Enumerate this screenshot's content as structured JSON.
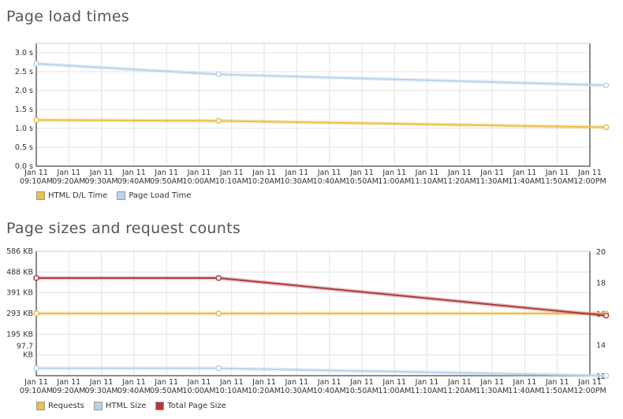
{
  "chart_data": [
    {
      "type": "line",
      "title": "Page load times",
      "categories": [
        "Jan 11 09:10AM",
        "Jan 11 09:20AM",
        "Jan 11 09:30AM",
        "Jan 11 09:40AM",
        "Jan 11 09:50AM",
        "Jan 11 10:00AM",
        "Jan 11 10:10AM",
        "Jan 11 10:20AM",
        "Jan 11 10:30AM",
        "Jan 11 10:40AM",
        "Jan 11 10:50AM",
        "Jan 11 11:00AM",
        "Jan 11 11:10AM",
        "Jan 11 11:20AM",
        "Jan 11 11:30AM",
        "Jan 11 11:40AM",
        "Jan 11 11:50AM",
        "Jan 11 12:00PM"
      ],
      "x_tick_lines": [
        [
          "Jan 11",
          "09:10AM"
        ],
        [
          "Jan 11",
          "09:20AM"
        ],
        [
          "Jan 11",
          "09:30AM"
        ],
        [
          "Jan 11",
          "09:40AM"
        ],
        [
          "Jan 11",
          "09:50AM"
        ],
        [
          "Jan 11",
          "10:00AM"
        ],
        [
          "Jan 11",
          "10:10AM"
        ],
        [
          "Jan 11",
          "10:20AM"
        ],
        [
          "Jan 11",
          "10:30AM"
        ],
        [
          "Jan 11",
          "10:40AM"
        ],
        [
          "Jan 11",
          "10:50AM"
        ],
        [
          "Jan 11",
          "11:00AM"
        ],
        [
          "Jan 11",
          "11:10AM"
        ],
        [
          "Jan 11",
          "11:20AM"
        ],
        [
          "Jan 11",
          "11:30AM"
        ],
        [
          "Jan 11",
          "11:40AM"
        ],
        [
          "Jan 11",
          "11:50AM"
        ],
        [
          "Jan 11",
          "12:00PM"
        ]
      ],
      "ylim": [
        0,
        3.25
      ],
      "y_ticks": [
        0,
        0.5,
        1.0,
        1.5,
        2.0,
        2.5,
        3.0
      ],
      "y_tick_labels": [
        "0.0 s",
        "0.5 s",
        "1.0 s",
        "1.5 s",
        "2.0 s",
        "2.5 s",
        "3.0 s"
      ],
      "grid": true,
      "series": [
        {
          "name": "HTML D/L Time",
          "color": "#e8c04a",
          "points": [
            [
              0,
              1.22
            ],
            [
              5.6,
              1.2
            ],
            [
              17.5,
              1.03
            ]
          ]
        },
        {
          "name": "Page Load Time",
          "color": "#b8d3ea",
          "points": [
            [
              0,
              2.71
            ],
            [
              5.6,
              2.43
            ],
            [
              17.5,
              2.14
            ]
          ]
        }
      ]
    },
    {
      "type": "line",
      "title": "Page sizes and request counts",
      "categories": [
        "Jan 11 09:10AM",
        "Jan 11 09:20AM",
        "Jan 11 09:30AM",
        "Jan 11 09:40AM",
        "Jan 11 09:50AM",
        "Jan 11 10:00AM",
        "Jan 11 10:10AM",
        "Jan 11 10:20AM",
        "Jan 11 10:30AM",
        "Jan 11 10:40AM",
        "Jan 11 10:50AM",
        "Jan 11 11:00AM",
        "Jan 11 11:10AM",
        "Jan 11 11:20AM",
        "Jan 11 11:30AM",
        "Jan 11 11:40AM",
        "Jan 11 11:50AM",
        "Jan 11 12:00PM"
      ],
      "x_tick_lines": [
        [
          "Jan 11",
          "09:10AM"
        ],
        [
          "Jan 11",
          "09:20AM"
        ],
        [
          "Jan 11",
          "09:30AM"
        ],
        [
          "Jan 11",
          "09:40AM"
        ],
        [
          "Jan 11",
          "09:50AM"
        ],
        [
          "Jan 11",
          "10:00AM"
        ],
        [
          "Jan 11",
          "10:10AM"
        ],
        [
          "Jan 11",
          "10:20AM"
        ],
        [
          "Jan 11",
          "10:30AM"
        ],
        [
          "Jan 11",
          "10:40AM"
        ],
        [
          "Jan 11",
          "10:50AM"
        ],
        [
          "Jan 11",
          "11:00AM"
        ],
        [
          "Jan 11",
          "11:10AM"
        ],
        [
          "Jan 11",
          "11:20AM"
        ],
        [
          "Jan 11",
          "11:30AM"
        ],
        [
          "Jan 11",
          "11:40AM"
        ],
        [
          "Jan 11",
          "11:50AM"
        ],
        [
          "Jan 11",
          "12:00PM"
        ]
      ],
      "ylim_left": [
        0,
        586
      ],
      "y_ticks_left": [
        97.7,
        195,
        293,
        391,
        488,
        586
      ],
      "y_tick_labels_left": [
        [
          "97.7",
          "KB"
        ],
        [
          "195 KB"
        ],
        [
          "293 KB"
        ],
        [
          "391 KB"
        ],
        [
          "488 KB"
        ],
        [
          "586 KB"
        ]
      ],
      "ylim_right": [
        12,
        20
      ],
      "y_ticks_right": [
        12,
        14,
        16,
        18,
        20
      ],
      "y_tick_labels_right": [
        "12",
        "14",
        "16",
        "18",
        "20"
      ],
      "grid": true,
      "series": [
        {
          "name": "Requests",
          "color": "#e8c04a",
          "axis": "right",
          "points": [
            [
              0,
              16
            ],
            [
              5.6,
              16
            ],
            [
              17.5,
              16
            ]
          ]
        },
        {
          "name": "HTML Size",
          "color": "#b8d3ea",
          "axis": "left",
          "points": [
            [
              0,
              35
            ],
            [
              5.6,
              35
            ],
            [
              17.5,
              0
            ]
          ]
        },
        {
          "name": "Total Page Size",
          "color": "#b03a3e",
          "axis": "left",
          "points": [
            [
              0,
              460
            ],
            [
              5.6,
              460
            ],
            [
              17.5,
              283
            ]
          ]
        }
      ]
    }
  ]
}
